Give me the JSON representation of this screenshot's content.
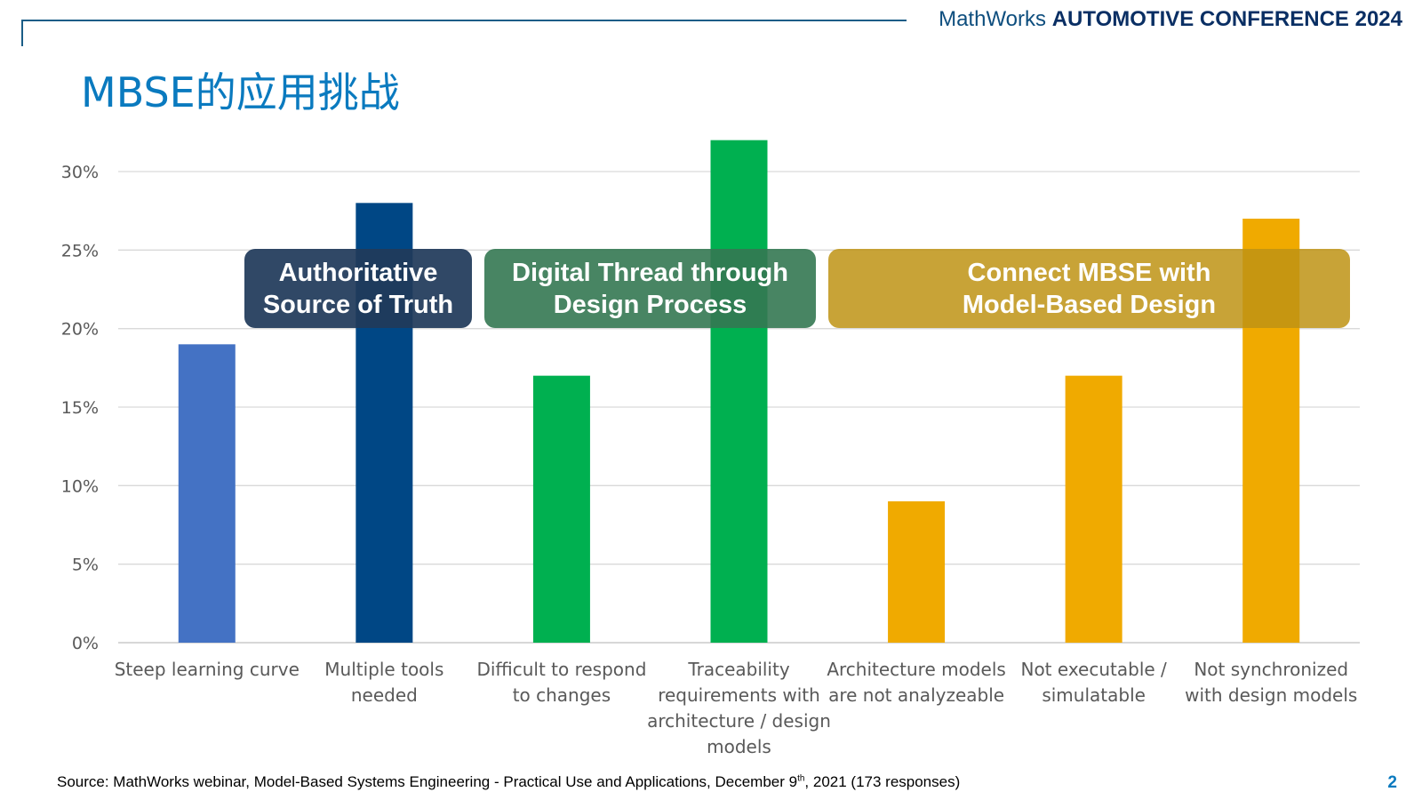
{
  "header": {
    "brand_name": "MathWorks",
    "conference": "AUTOMOTIVE CONFERENCE 2024"
  },
  "slide": {
    "title": "MBSE的应用挑战",
    "page_number": "2"
  },
  "callouts": {
    "truth": "Authoritative\nSource of Truth",
    "thread": "Digital Thread through\nDesign Process",
    "connect": "Connect MBSE with\nModel-Based Design"
  },
  "source": {
    "prefix": "Source: MathWorks webinar, Model-Based Systems Engineering - Practical Use and Applications, December 9",
    "superscript": "th",
    "suffix": ", 2021 (173 responses)"
  },
  "chart_data": {
    "type": "bar",
    "categories": [
      "Steep learning curve",
      "Multiple tools needed",
      "Difficult to respond to changes",
      "Traceability requirements with architecture / design models",
      "Architecture models are not analyzeable",
      "Not executable / simulatable",
      "Not synchronized with design models"
    ],
    "category_lines": [
      [
        "Steep learning curve"
      ],
      [
        "Multiple tools",
        "needed"
      ],
      [
        "Difficult to respond",
        "to changes"
      ],
      [
        "Traceability",
        "requirements with",
        "architecture / design",
        "models"
      ],
      [
        "Architecture models",
        "are not analyzeable"
      ],
      [
        "Not executable /",
        "simulatable"
      ],
      [
        "Not synchronized",
        "with design models"
      ]
    ],
    "values": [
      19,
      28,
      17,
      32,
      9,
      17,
      27
    ],
    "unit": "%",
    "bar_colors": [
      "#4472c4",
      "#004785",
      "#00b050",
      "#00b050",
      "#f0aa00",
      "#f0aa00",
      "#f0aa00"
    ],
    "ylim": [
      0,
      30
    ],
    "yticks": [
      0,
      5,
      10,
      15,
      20,
      25,
      30
    ],
    "ytick_labels": [
      "0%",
      "5%",
      "10%",
      "15%",
      "20%",
      "25%",
      "30%"
    ],
    "grid": true,
    "title": "",
    "xlabel": "",
    "ylabel": ""
  }
}
